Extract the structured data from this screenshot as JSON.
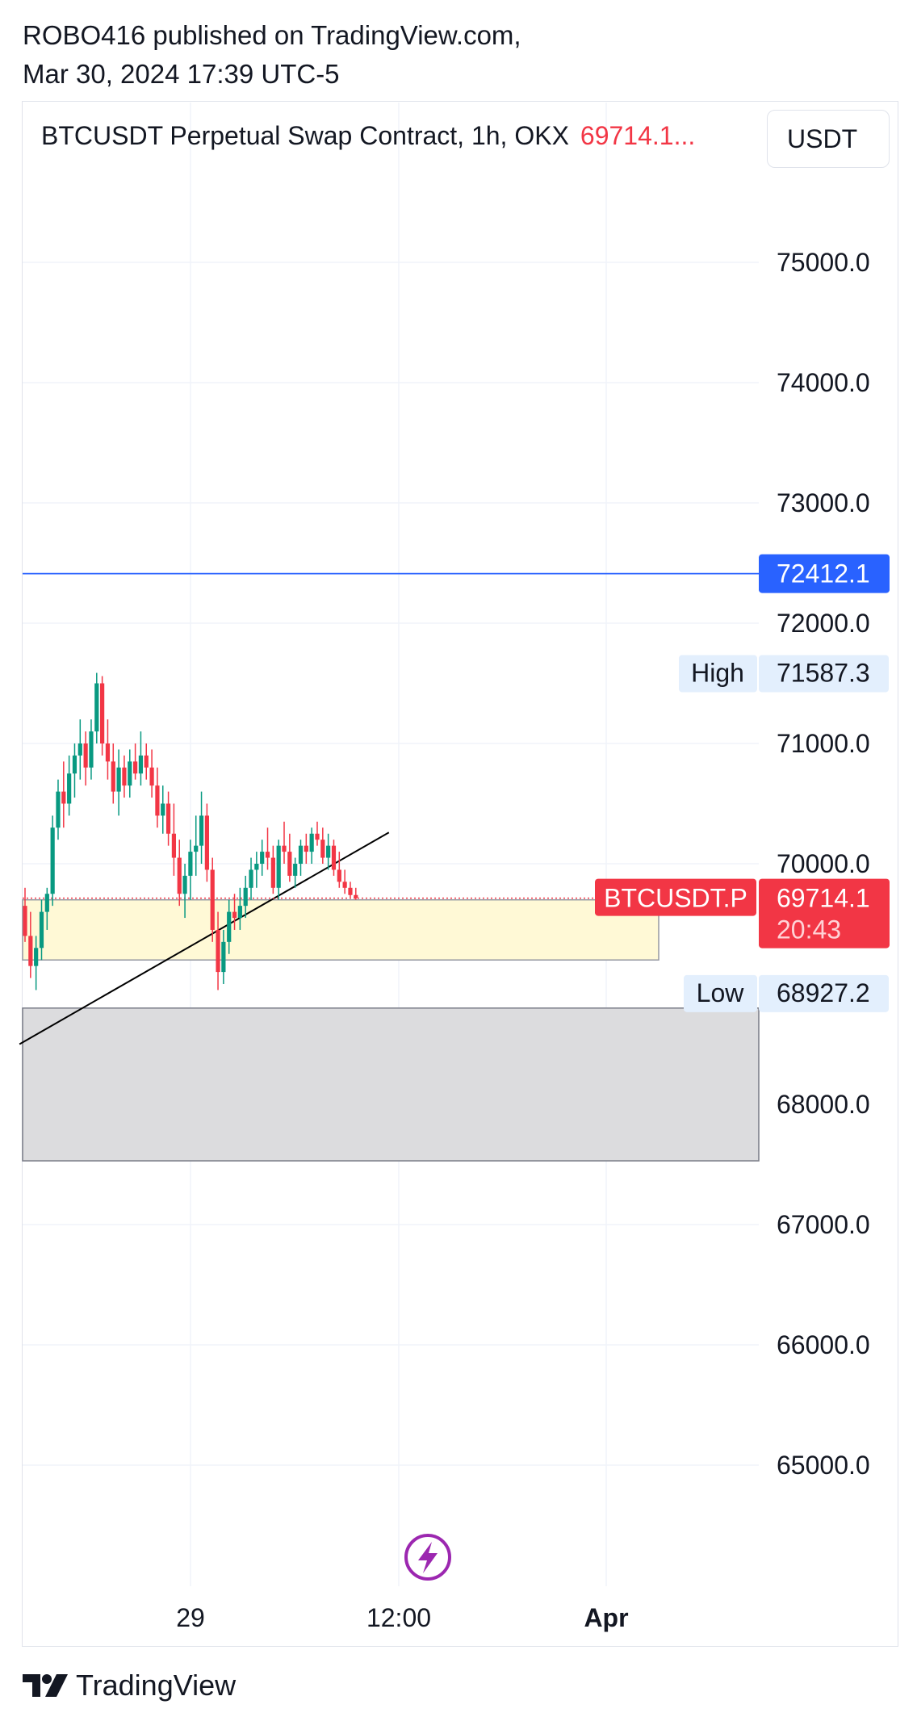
{
  "publisher": {
    "line1": "ROBO416 published on TradingView.com,",
    "line2": "Mar 30, 2024 17:39 UTC-5"
  },
  "symbol": {
    "title": "BTCUSDT Perpetual Swap Contract, 1h, OKX",
    "last_truncated": "69714.1...",
    "currency": "USDT"
  },
  "chart_data": {
    "type": "candlestick",
    "symbol_label": "BTCUSDT.P",
    "last_price": "69714.1",
    "countdown": "20:43",
    "yticks": [
      "75000.0",
      "74000.0",
      "73000.0",
      "72000.0",
      "71000.0",
      "70000.0",
      "68000.0",
      "67000.0",
      "66000.0",
      "65000.0"
    ],
    "xticks": [
      {
        "label": "29",
        "bold": false
      },
      {
        "label": "12:00",
        "bold": false
      },
      {
        "label": "Apr",
        "bold": true
      }
    ],
    "high": {
      "label": "High",
      "value": "71587.3"
    },
    "low": {
      "label": "Low",
      "value": "68927.2"
    },
    "hline": {
      "value": "72412.1",
      "color": "#2962ff"
    },
    "zones": [
      {
        "top": 69700,
        "bottom": 69200,
        "color": "#fff9d6",
        "border": "#9598a1"
      },
      {
        "top": 68800,
        "bottom": 67530,
        "color": "#dcdcde",
        "border": "#787b86"
      }
    ],
    "trendline": {
      "start": [
        -1,
        68500
      ],
      "end": [
        66,
        70260
      ],
      "color": "#000000"
    },
    "colors": {
      "up": "#089981",
      "down": "#f23645"
    },
    "candles_ohlc": [
      [
        69650,
        69800,
        69350,
        69400
      ],
      [
        69400,
        69600,
        69050,
        69150
      ],
      [
        69150,
        69400,
        68950,
        69300
      ],
      [
        69300,
        69700,
        69200,
        69600
      ],
      [
        69600,
        69800,
        69450,
        69750
      ],
      [
        69750,
        70400,
        69650,
        70300
      ],
      [
        70300,
        70700,
        70200,
        70600
      ],
      [
        70600,
        70850,
        70300,
        70500
      ],
      [
        70500,
        70900,
        70400,
        70750
      ],
      [
        70750,
        71000,
        70550,
        70900
      ],
      [
        70900,
        71200,
        70700,
        71000
      ],
      [
        71000,
        71100,
        70650,
        70800
      ],
      [
        70800,
        71200,
        70700,
        71100
      ],
      [
        71100,
        71587,
        71000,
        71500
      ],
      [
        71500,
        71560,
        70900,
        71000
      ],
      [
        71000,
        71200,
        70700,
        70850
      ],
      [
        70850,
        71000,
        70500,
        70600
      ],
      [
        70600,
        70950,
        70400,
        70800
      ],
      [
        70800,
        70900,
        70550,
        70650
      ],
      [
        70650,
        70950,
        70550,
        70850
      ],
      [
        70850,
        71000,
        70700,
        70750
      ],
      [
        70750,
        71100,
        70650,
        70900
      ],
      [
        70900,
        71000,
        70700,
        70800
      ],
      [
        70800,
        70950,
        70550,
        70650
      ],
      [
        70650,
        70800,
        70300,
        70400
      ],
      [
        70400,
        70650,
        70250,
        70500
      ],
      [
        70500,
        70600,
        70150,
        70250
      ],
      [
        70250,
        70500,
        69900,
        70050
      ],
      [
        70050,
        70200,
        69650,
        69750
      ],
      [
        69750,
        70000,
        69550,
        69900
      ],
      [
        69900,
        70200,
        69700,
        70100
      ],
      [
        70100,
        70400,
        69900,
        70150
      ],
      [
        70150,
        70600,
        70000,
        70400
      ],
      [
        70400,
        70500,
        69850,
        69950
      ],
      [
        69950,
        70050,
        69350,
        69450
      ],
      [
        69450,
        69600,
        68950,
        69100
      ],
      [
        69100,
        69450,
        69000,
        69350
      ],
      [
        69350,
        69700,
        69250,
        69600
      ],
      [
        69600,
        69750,
        69450,
        69550
      ],
      [
        69550,
        69800,
        69450,
        69650
      ],
      [
        69650,
        69900,
        69550,
        69800
      ],
      [
        69800,
        70050,
        69700,
        69950
      ],
      [
        69950,
        70100,
        69800,
        70000
      ],
      [
        70000,
        70200,
        69900,
        70100
      ],
      [
        70100,
        70300,
        69950,
        70050
      ],
      [
        70050,
        70150,
        69750,
        69800
      ],
      [
        69800,
        70200,
        69700,
        70150
      ],
      [
        70150,
        70350,
        70000,
        70100
      ],
      [
        70100,
        70250,
        69850,
        69900
      ],
      [
        69900,
        70050,
        69800,
        70000
      ],
      [
        70000,
        70200,
        69900,
        70150
      ],
      [
        70150,
        70250,
        70000,
        70100
      ],
      [
        70100,
        70300,
        70000,
        70250
      ],
      [
        70250,
        70350,
        70150,
        70200
      ],
      [
        70200,
        70300,
        70000,
        70050
      ],
      [
        70050,
        70250,
        69950,
        70150
      ],
      [
        70150,
        70200,
        69900,
        69950
      ],
      [
        69950,
        70100,
        69800,
        69850
      ],
      [
        69850,
        69950,
        69750,
        69800
      ],
      [
        69800,
        69850,
        69720,
        69740
      ],
      [
        69740,
        69800,
        69700,
        69714
      ]
    ]
  }
}
